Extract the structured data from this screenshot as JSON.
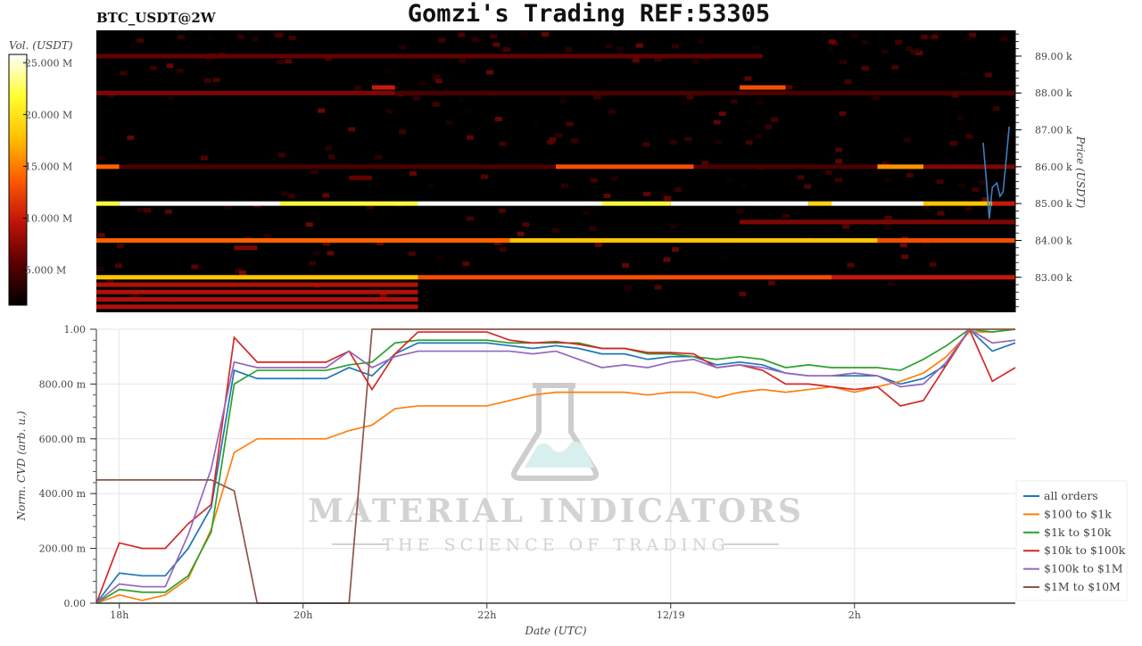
{
  "title": "Gomzi's Trading REF:53305",
  "symbol": "BTC_USDT@2W",
  "watermark": {
    "name": "MATERIAL INDICATORS",
    "tagline": "THE SCIENCE OF TRADING",
    "icon": "flask-icon"
  },
  "chart_data": [
    {
      "type": "heatmap",
      "colorbar": {
        "label": "Vol. (USDT)",
        "ticks": [
          "5.000 M",
          "10.000 M",
          "15.000 M",
          "20.000 M",
          "25.000 M"
        ],
        "tick_values": [
          5,
          10,
          15,
          20,
          25
        ],
        "range": [
          1.6,
          25.8
        ],
        "colormap": [
          "#000000",
          "#5a0000",
          "#c0140a",
          "#ff5a00",
          "#ffc000",
          "#ffff30",
          "#ffffff"
        ]
      },
      "ylabel": "Price (USDT)",
      "yticks": [
        "83.00 k",
        "84.00 k",
        "85.00 k",
        "86.00 k",
        "87.00 k",
        "88.00 k",
        "89.00 k"
      ],
      "ytick_values": [
        83,
        84,
        85,
        86,
        87,
        88,
        89
      ],
      "ylim": [
        82.05,
        89.7
      ],
      "xlim": [
        "12/18 17:45",
        "12/19 03:45"
      ],
      "bands": [
        {
          "price": 85.0,
          "from": "17:45",
          "to": "18:00",
          "vol": 22
        },
        {
          "price": 85.0,
          "from": "18:00",
          "to": "19:45",
          "vol": 26
        },
        {
          "price": 85.0,
          "from": "19:45",
          "to": "21:15",
          "vol": 22
        },
        {
          "price": 85.0,
          "from": "21:15",
          "to": "23:15",
          "vol": 26
        },
        {
          "price": 85.0,
          "from": "23:15",
          "to": "00:00",
          "vol": 22
        },
        {
          "price": 85.0,
          "from": "00:00",
          "to": "01:30",
          "vol": 26
        },
        {
          "price": 85.0,
          "from": "01:30",
          "to": "01:45",
          "vol": 19
        },
        {
          "price": 85.0,
          "from": "01:45",
          "to": "02:45",
          "vol": 26
        },
        {
          "price": 85.0,
          "from": "02:45",
          "to": "03:30",
          "vol": 18
        },
        {
          "price": 85.0,
          "from": "03:30",
          "to": "03:45",
          "vol": 10
        },
        {
          "price": 84.0,
          "from": "17:45",
          "to": "22:15",
          "vol": 14
        },
        {
          "price": 84.0,
          "from": "22:15",
          "to": "02:15",
          "vol": 18
        },
        {
          "price": 84.0,
          "from": "02:15",
          "to": "03:45",
          "vol": 13
        },
        {
          "price": 83.0,
          "from": "17:45",
          "to": "21:15",
          "vol": 18
        },
        {
          "price": 83.0,
          "from": "21:15",
          "to": "01:45",
          "vol": 13
        },
        {
          "price": 83.0,
          "from": "01:45",
          "to": "03:45",
          "vol": 10
        },
        {
          "price": 86.0,
          "from": "17:45",
          "to": "18:00",
          "vol": 14
        },
        {
          "price": 86.0,
          "from": "18:00",
          "to": "22:45",
          "vol": 5
        },
        {
          "price": 86.0,
          "from": "22:45",
          "to": "00:15",
          "vol": 13
        },
        {
          "price": 86.0,
          "from": "00:15",
          "to": "02:15",
          "vol": 5
        },
        {
          "price": 86.0,
          "from": "02:15",
          "to": "02:45",
          "vol": 16
        },
        {
          "price": 86.0,
          "from": "02:45",
          "to": "03:45",
          "vol": 7
        },
        {
          "price": 88.0,
          "from": "17:45",
          "to": "21:00",
          "vol": 7
        },
        {
          "price": 88.0,
          "from": "21:00",
          "to": "03:45",
          "vol": 5
        },
        {
          "price": 88.15,
          "from": "00:45",
          "to": "01:15",
          "vol": 13
        },
        {
          "price": 88.15,
          "from": "20:45",
          "to": "21:00",
          "vol": 10
        },
        {
          "price": 89.0,
          "from": "17:45",
          "to": "01:00",
          "vol": 6
        },
        {
          "price": 84.5,
          "from": "00:45",
          "to": "03:45",
          "vol": 7
        },
        {
          "price": 82.8,
          "from": "17:45",
          "to": "21:15",
          "vol": 9
        },
        {
          "price": 82.6,
          "from": "17:45",
          "to": "21:15",
          "vol": 9
        },
        {
          "price": 82.4,
          "from": "17:45",
          "to": "21:15",
          "vol": 9
        },
        {
          "price": 82.2,
          "from": "17:45",
          "to": "21:15",
          "vol": 9
        },
        {
          "price": 83.8,
          "from": "19:15",
          "to": "19:30",
          "vol": 7
        },
        {
          "price": 85.7,
          "from": "20:30",
          "to": "20:45",
          "vol": 6
        }
      ],
      "price_line": {
        "color": "#3a7fc0",
        "points": [
          [
            "03:24",
            86.65
          ],
          [
            "03:26",
            85.68
          ],
          [
            "03:28",
            84.59
          ],
          [
            "03:30",
            85.44
          ],
          [
            "03:33",
            85.56
          ],
          [
            "03:35",
            85.2
          ],
          [
            "03:37",
            85.32
          ],
          [
            "03:39",
            86.17
          ],
          [
            "03:41",
            87.09
          ]
        ]
      }
    },
    {
      "type": "line",
      "xlabel": "Date (UTC)",
      "ylabel": "Norm. CVD (arb. u.)",
      "ylim": [
        0,
        1
      ],
      "yticks": [
        "0.00",
        "200.00 m",
        "400.00 m",
        "600.00 m",
        "800.00 m",
        "1.00"
      ],
      "ytick_values": [
        0,
        0.2,
        0.4,
        0.6,
        0.8,
        1.0
      ],
      "xticks": [
        "18h",
        "20h",
        "22h",
        "12/19",
        "2h"
      ],
      "xtick_times": [
        "18:00",
        "20:00",
        "22:00",
        "00:00",
        "02:00"
      ],
      "grid": true,
      "legend_position": "right",
      "x": [
        "17:45",
        "18:00",
        "18:15",
        "18:30",
        "18:45",
        "19:00",
        "19:15",
        "19:30",
        "19:45",
        "20:00",
        "20:15",
        "20:30",
        "20:45",
        "21:00",
        "21:15",
        "21:30",
        "21:45",
        "22:00",
        "22:15",
        "22:30",
        "22:45",
        "23:00",
        "23:15",
        "23:30",
        "23:45",
        "00:00",
        "00:15",
        "00:30",
        "00:45",
        "01:00",
        "01:15",
        "01:30",
        "01:45",
        "02:00",
        "02:15",
        "02:30",
        "02:45",
        "03:00",
        "03:15",
        "03:30",
        "03:45"
      ],
      "series": [
        {
          "name": "all orders",
          "color": "#1f77b4",
          "values": [
            0,
            0.11,
            0.1,
            0.1,
            0.2,
            0.35,
            0.85,
            0.82,
            0.82,
            0.82,
            0.82,
            0.86,
            0.83,
            0.91,
            0.95,
            0.95,
            0.95,
            0.95,
            0.94,
            0.93,
            0.94,
            0.93,
            0.91,
            0.91,
            0.89,
            0.9,
            0.9,
            0.87,
            0.88,
            0.87,
            0.84,
            0.83,
            0.83,
            0.83,
            0.83,
            0.8,
            0.82,
            0.87,
            1.0,
            0.92,
            0.95
          ]
        },
        {
          "name": "$100 to $1k",
          "color": "#ff7f0e",
          "values": [
            0,
            0.03,
            0.01,
            0.03,
            0.09,
            0.27,
            0.55,
            0.6,
            0.6,
            0.6,
            0.6,
            0.63,
            0.65,
            0.71,
            0.72,
            0.72,
            0.72,
            0.72,
            0.74,
            0.76,
            0.77,
            0.77,
            0.77,
            0.77,
            0.76,
            0.77,
            0.77,
            0.75,
            0.77,
            0.78,
            0.77,
            0.78,
            0.79,
            0.77,
            0.79,
            0.81,
            0.84,
            0.9,
            0.99,
            0.99,
            1.0
          ]
        },
        {
          "name": "$1k to $10k",
          "color": "#2ca02c",
          "values": [
            0,
            0.05,
            0.04,
            0.04,
            0.1,
            0.26,
            0.8,
            0.85,
            0.85,
            0.85,
            0.85,
            0.87,
            0.88,
            0.95,
            0.96,
            0.96,
            0.96,
            0.96,
            0.95,
            0.95,
            0.95,
            0.95,
            0.93,
            0.93,
            0.91,
            0.91,
            0.9,
            0.89,
            0.9,
            0.89,
            0.86,
            0.87,
            0.86,
            0.86,
            0.86,
            0.85,
            0.89,
            0.94,
            1.0,
            0.99,
            1.0
          ]
        },
        {
          "name": "$10k to $100k",
          "color": "#d62728",
          "values": [
            0,
            0.22,
            0.2,
            0.2,
            0.29,
            0.36,
            0.97,
            0.88,
            0.88,
            0.88,
            0.88,
            0.92,
            0.78,
            0.91,
            0.99,
            0.99,
            0.99,
            0.99,
            0.96,
            0.95,
            0.955,
            0.945,
            0.93,
            0.93,
            0.915,
            0.915,
            0.91,
            0.86,
            0.87,
            0.85,
            0.8,
            0.8,
            0.79,
            0.78,
            0.79,
            0.72,
            0.74,
            0.87,
            1.0,
            0.81,
            0.86
          ]
        },
        {
          "name": "$100k to $1M",
          "color": "#9467bd",
          "values": [
            0,
            0.07,
            0.06,
            0.06,
            0.25,
            0.49,
            0.88,
            0.86,
            0.86,
            0.86,
            0.86,
            0.92,
            0.86,
            0.9,
            0.92,
            0.92,
            0.92,
            0.92,
            0.92,
            0.91,
            0.92,
            0.89,
            0.86,
            0.87,
            0.86,
            0.88,
            0.89,
            0.86,
            0.87,
            0.86,
            0.84,
            0.83,
            0.83,
            0.84,
            0.83,
            0.79,
            0.8,
            0.88,
            1.0,
            0.95,
            0.96
          ]
        },
        {
          "name": "$1M to $10M",
          "color": "#8c564b",
          "values": [
            0.45,
            0.45,
            0.45,
            0.45,
            0.45,
            0.45,
            0.41,
            0,
            0,
            0,
            0,
            0,
            1,
            1,
            1,
            1,
            1,
            1,
            1,
            1,
            1,
            1,
            1,
            1,
            1,
            1,
            1,
            1,
            1,
            1,
            1,
            1,
            1,
            1,
            1,
            1,
            1,
            1,
            1,
            1,
            1
          ]
        }
      ]
    }
  ]
}
